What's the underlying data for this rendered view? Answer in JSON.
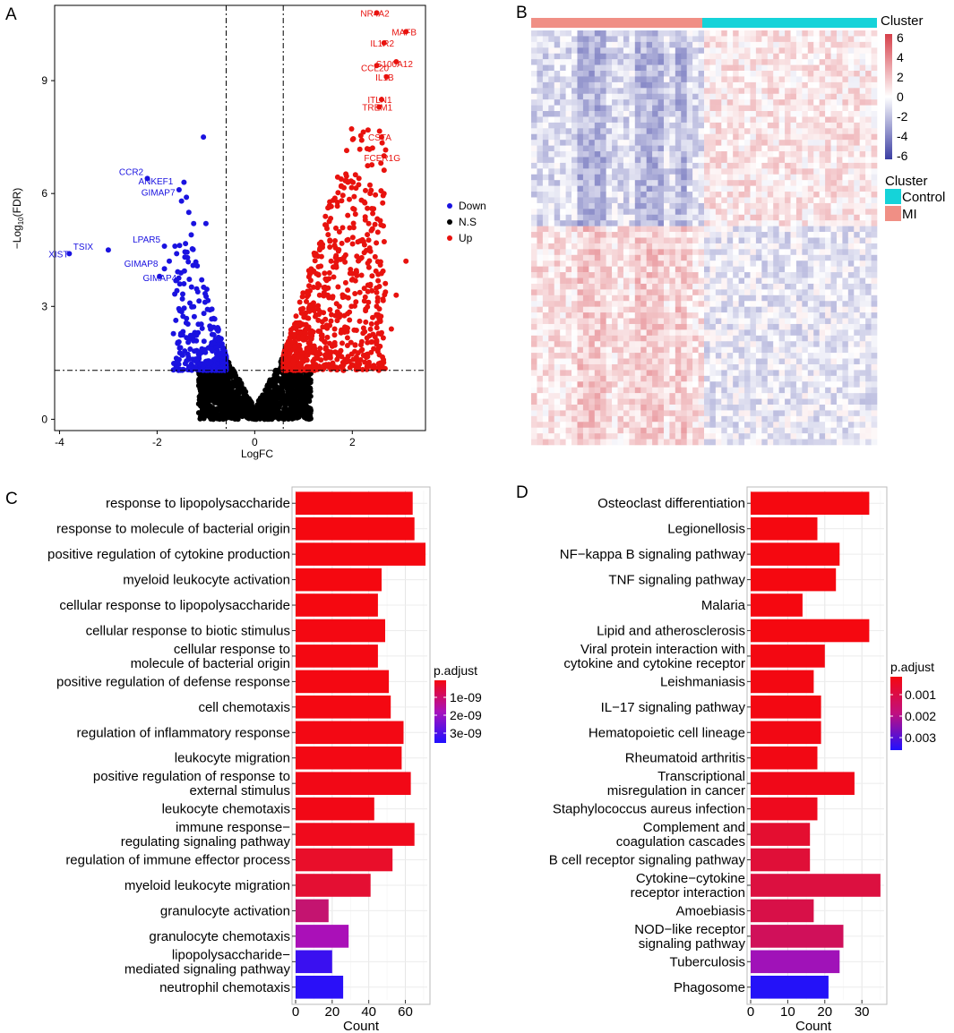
{
  "panels": {
    "a": "A",
    "b": "B",
    "c": "C",
    "d": "D"
  },
  "chart_data": [
    {
      "type": "scatter",
      "panel": "A",
      "title": "",
      "xlabel": "LogFC",
      "ylabel_main": "−Log",
      "ylabel_sub": "10",
      "ylabel_tail": "(FDR)",
      "xlim": [
        -4.1,
        3.5
      ],
      "ylim": [
        -0.3,
        11
      ],
      "xticks": [
        -4,
        -2,
        0,
        2
      ],
      "yticks": [
        0,
        3,
        6,
        9
      ],
      "thresholds": {
        "logfc": [
          -0.585,
          0.585
        ],
        "neglog10_fdr": 1.3
      },
      "legend": [
        {
          "key": "down",
          "label": "Down",
          "color": "#1a12e0"
        },
        {
          "key": "ns",
          "label": "N.S",
          "color": "#000000"
        },
        {
          "key": "up",
          "label": "Up",
          "color": "#e8120e"
        }
      ],
      "labeled_genes_up": [
        {
          "name": "NR4A2",
          "x": 2.5,
          "y": 10.8
        },
        {
          "name": "MAFB",
          "x": 3.1,
          "y": 10.3
        },
        {
          "name": "IL1R2",
          "x": 2.65,
          "y": 10.0
        },
        {
          "name": "S100A12",
          "x": 2.9,
          "y": 9.5
        },
        {
          "name": "CCL20",
          "x": 2.5,
          "y": 9.4
        },
        {
          "name": "IL1B",
          "x": 2.7,
          "y": 9.1
        },
        {
          "name": "ITLN1",
          "x": 2.6,
          "y": 8.5
        },
        {
          "name": "TREM1",
          "x": 2.55,
          "y": 8.3
        },
        {
          "name": "CSTA",
          "x": 2.6,
          "y": 7.5
        },
        {
          "name": "FCER1G",
          "x": 2.65,
          "y": 7.0
        }
      ],
      "labeled_genes_down": [
        {
          "name": "CCR2",
          "x": -2.2,
          "y": 6.4
        },
        {
          "name": "ANKEF1",
          "x": -1.55,
          "y": 6.1
        },
        {
          "name": "GIMAP7",
          "x": -1.5,
          "y": 5.8
        },
        {
          "name": "TSIX",
          "x": -3.0,
          "y": 4.5
        },
        {
          "name": "XIST",
          "x": -3.8,
          "y": 4.4
        },
        {
          "name": "LPAR5",
          "x": -1.85,
          "y": 4.6
        },
        {
          "name": "GIMAP8",
          "x": -1.85,
          "y": 4.0
        },
        {
          "name": "GIMAP4",
          "x": -1.45,
          "y": 3.6
        }
      ]
    },
    {
      "type": "heatmap",
      "panel": "B",
      "annotation_title": "Cluster",
      "colorbar_title": "Cluster",
      "colorbar_ticks": [
        6,
        4,
        2,
        0,
        -2,
        -4,
        -6
      ],
      "colorbar_tick_labels": [
        "6",
        "4",
        "2",
        "0",
        "-2",
        "-4",
        "-6"
      ],
      "groups": [
        {
          "name": "MI",
          "color": "#f08f85",
          "samples_fraction": 0.49
        },
        {
          "name": "Control",
          "color": "#15d3d9",
          "samples_fraction": 0.51
        }
      ],
      "legend_groups": [
        "Control",
        "MI"
      ],
      "colors": {
        "high": "#d6404a",
        "mid": "#ffffff",
        "low": "#3b3ea3"
      }
    },
    {
      "type": "bar",
      "panel": "C",
      "orientation": "horizontal",
      "xlabel": "Count",
      "xlim": [
        0,
        72
      ],
      "xticks": [
        0,
        20,
        40,
        60
      ],
      "legend_title": "p.adjust",
      "legend_ticks": [
        "1e-09",
        "2e-09",
        "3e-09"
      ],
      "categories": [
        [
          "response to lipopolysaccharide"
        ],
        [
          "response to molecule of bacterial origin"
        ],
        [
          "positive regulation of cytokine production"
        ],
        [
          "myeloid leukocyte activation"
        ],
        [
          "cellular response to lipopolysaccharide"
        ],
        [
          "cellular response to biotic stimulus"
        ],
        [
          "cellular response to",
          "molecule of bacterial origin"
        ],
        [
          "positive regulation of defense response"
        ],
        [
          "cell chemotaxis"
        ],
        [
          "regulation of inflammatory response"
        ],
        [
          "leukocyte migration"
        ],
        [
          "positive regulation of response to",
          "external stimulus"
        ],
        [
          "leukocyte chemotaxis"
        ],
        [
          "immune response−",
          "regulating signaling pathway"
        ],
        [
          "regulation of immune effector process"
        ],
        [
          "myeloid leukocyte migration"
        ],
        [
          "granulocyte activation"
        ],
        [
          "granulocyte chemotaxis"
        ],
        [
          "lipopolysaccharide−",
          "mediated signaling pathway"
        ],
        [
          "neutrophil chemotaxis"
        ]
      ],
      "values": [
        64,
        65,
        71,
        47,
        45,
        49,
        45,
        51,
        52,
        59,
        58,
        63,
        43,
        65,
        53,
        41,
        18,
        29,
        20,
        26
      ],
      "colors": [
        "#f50810",
        "#f50810",
        "#f50810",
        "#f50810",
        "#f50810",
        "#f40812",
        "#f40812",
        "#f40812",
        "#f40812",
        "#f30814",
        "#f30814",
        "#f20816",
        "#f20816",
        "#f00a1c",
        "#e90e2a",
        "#e40f33",
        "#c41470",
        "#aa10b8",
        "#3a10f0",
        "#2a10f8"
      ]
    },
    {
      "type": "bar",
      "panel": "D",
      "orientation": "horizontal",
      "xlabel": "Count",
      "xlim": [
        0,
        36
      ],
      "xticks": [
        0,
        10,
        20,
        30
      ],
      "legend_title": "p.adjust",
      "legend_ticks": [
        "0.001",
        "0.002",
        "0.003"
      ],
      "categories": [
        [
          "Osteoclast differentiation"
        ],
        [
          "Legionellosis"
        ],
        [
          "NF−kappa B signaling pathway"
        ],
        [
          "TNF signaling pathway"
        ],
        [
          "Malaria"
        ],
        [
          "Lipid and atherosclerosis"
        ],
        [
          "Viral protein interaction with",
          "cytokine and cytokine receptor"
        ],
        [
          "Leishmaniasis"
        ],
        [
          "IL−17 signaling pathway"
        ],
        [
          "Hematopoietic cell lineage"
        ],
        [
          "Rheumatoid arthritis"
        ],
        [
          "Transcriptional",
          "misregulation in cancer"
        ],
        [
          "Staphylococcus aureus infection"
        ],
        [
          "Complement and",
          "coagulation cascades"
        ],
        [
          "B cell receptor signaling pathway"
        ],
        [
          "Cytokine−cytokine",
          "receptor interaction"
        ],
        [
          "Amoebiasis"
        ],
        [
          "NOD−like receptor",
          "signaling pathway"
        ],
        [
          "Tuberculosis"
        ],
        [
          "Phagosome"
        ]
      ],
      "values": [
        32,
        18,
        24,
        23,
        14,
        32,
        20,
        17,
        19,
        19,
        18,
        28,
        18,
        16,
        16,
        35,
        17,
        25,
        24,
        21
      ],
      "colors": [
        "#f50810",
        "#f50810",
        "#f50810",
        "#f50810",
        "#f50810",
        "#f50810",
        "#f30812",
        "#f30812",
        "#f30812",
        "#f20814",
        "#f20814",
        "#f00818",
        "#ee0a1e",
        "#e40e30",
        "#e00f38",
        "#dc1040",
        "#d81048",
        "#d0105a",
        "#a012b8",
        "#2412f8"
      ]
    }
  ]
}
